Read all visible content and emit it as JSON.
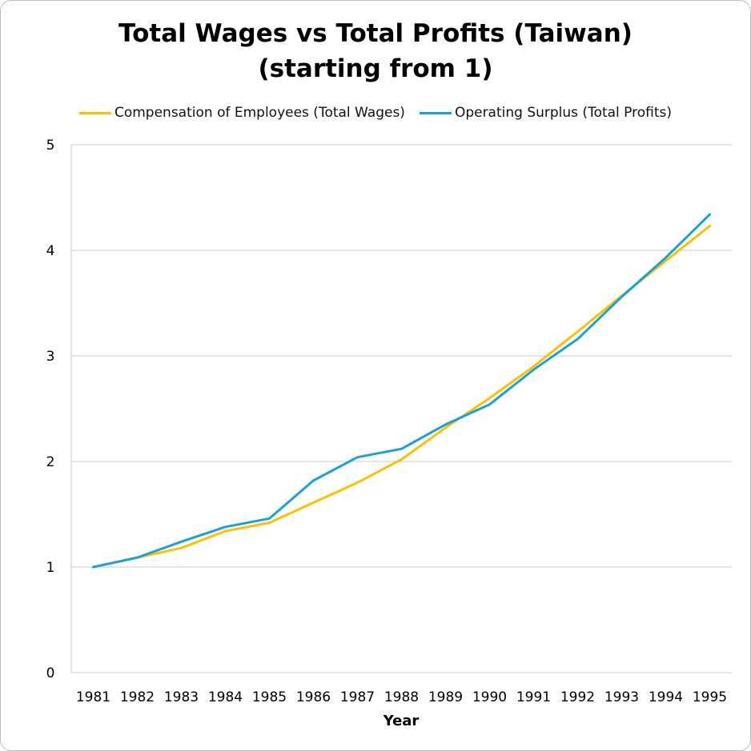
{
  "chart_data": {
    "type": "line",
    "title": "Total Wages vs Total Profits (Taiwan)",
    "subtitle": "(starting from 1)",
    "xlabel": "Year",
    "ylabel": "",
    "ylim": [
      0,
      5
    ],
    "yticks": [
      "0",
      "1",
      "2",
      "3",
      "4",
      "5"
    ],
    "grid": true,
    "legend_position": "top",
    "categories": [
      "1981",
      "1982",
      "1983",
      "1984",
      "1985",
      "1986",
      "1987",
      "1988",
      "1989",
      "1990",
      "1991",
      "1992",
      "1993",
      "1994",
      "1995"
    ],
    "series": [
      {
        "name": "Compensation of Employees (Total Wages)",
        "color": "#FFC000",
        "values": [
          1.0,
          1.09,
          1.18,
          1.34,
          1.42,
          1.61,
          1.8,
          2.02,
          2.32,
          2.6,
          2.9,
          3.23,
          3.57,
          3.9,
          4.23
        ]
      },
      {
        "name": "Operating Surplus (Total Profits)",
        "color": "#1AA1DB",
        "values": [
          1.0,
          1.09,
          1.24,
          1.38,
          1.46,
          1.82,
          2.04,
          2.12,
          2.35,
          2.54,
          2.87,
          3.16,
          3.56,
          3.93,
          4.34
        ]
      }
    ]
  }
}
